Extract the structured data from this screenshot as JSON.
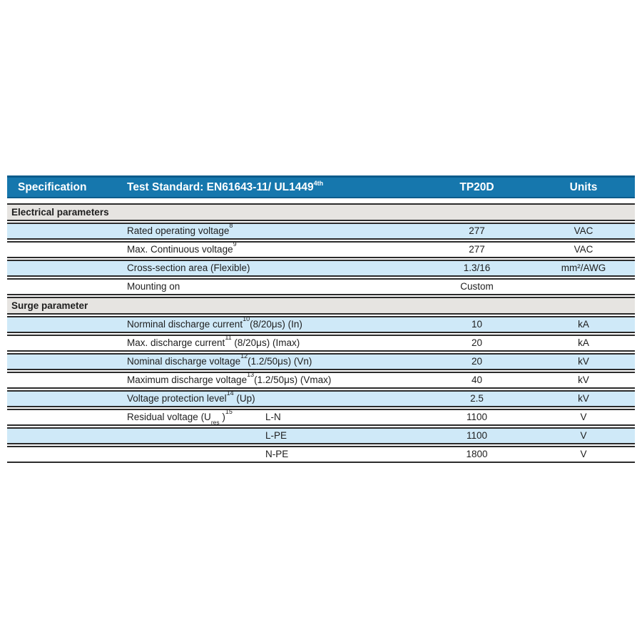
{
  "table": {
    "colors": {
      "header_bg": "#1677ad",
      "header_border": "#0d5c8c",
      "header_text": "#ffffff",
      "row_shade": "#cfe9f8",
      "section_bg": "#e6e4e1",
      "line": "#2b2b2b",
      "text": "#1e1e1e"
    },
    "header": {
      "col1": "Specification",
      "col2_prefix": "Test Standard: EN61643-11/ UL1449",
      "col2_sup": "4th",
      "col3": "TP20D",
      "col4": "Units"
    },
    "rows": [
      {
        "type": "section",
        "label": "Electrical parameters"
      },
      {
        "type": "data",
        "shade": true,
        "label": "Rated operating voltage",
        "sup": "8",
        "value": "277",
        "unit": "VAC"
      },
      {
        "type": "data",
        "shade": false,
        "label": "Max. Continuous voltage",
        "sup": "9",
        "value": "277",
        "unit": "VAC"
      },
      {
        "type": "data",
        "shade": true,
        "label": "Cross-section area (Flexible)",
        "value": "1.3/16",
        "unit": "mm²/AWG"
      },
      {
        "type": "data",
        "shade": false,
        "label": "Mounting on",
        "value": "Custom",
        "unit": ""
      },
      {
        "type": "section",
        "label": "Surge parameter"
      },
      {
        "type": "data",
        "shade": true,
        "label": "Norminal discharge current",
        "sup": "10",
        "suffix": "(8/20μs) (In)",
        "value": "10",
        "unit": "kA"
      },
      {
        "type": "data",
        "shade": false,
        "label": "Max. discharge current",
        "sup": "11",
        "suffix": " (8/20μs) (Imax)",
        "value": "20",
        "unit": "kA"
      },
      {
        "type": "data",
        "shade": true,
        "label": "Nominal discharge voltage",
        "sup": "12",
        "suffix": "(1.2/50μs) (Vn)",
        "value": "20",
        "unit": "kV"
      },
      {
        "type": "data",
        "shade": false,
        "label": "Maximum discharge voltage",
        "sup": "13",
        "suffix": "(1.2/50μs) (Vmax)",
        "value": "40",
        "unit": "kV"
      },
      {
        "type": "data",
        "shade": true,
        "label": "Voltage protection level",
        "sup": "14",
        "suffix": " (Up)",
        "value": "2.5",
        "unit": "kV"
      },
      {
        "type": "data",
        "shade": false,
        "label": "Residual voltage (U",
        "sub": "res",
        "label2": " )",
        "sup": "15",
        "sublabel": "L-N",
        "value": "1100",
        "unit": "V"
      },
      {
        "type": "data",
        "shade": true,
        "sublabel": "L-PE",
        "value": "1100",
        "unit": "V"
      },
      {
        "type": "data",
        "shade": false,
        "sublabel": "N-PE",
        "value": "1800",
        "unit": "V"
      }
    ]
  }
}
